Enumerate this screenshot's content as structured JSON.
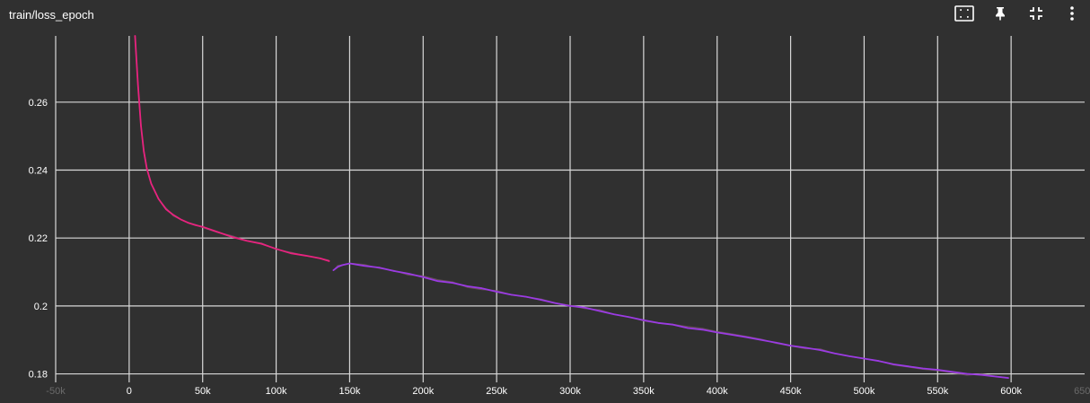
{
  "panel": {
    "title": "train/loss_epoch"
  },
  "toolbar": {
    "icons": [
      "fit-to-data-icon",
      "pin-icon",
      "collapse-icon",
      "more-options-icon"
    ]
  },
  "colors": {
    "background": "#303030",
    "grid": "#d8d8d8",
    "run1": "#e8237f",
    "run2": "#9b3be3",
    "raw_trace": "#7a5a68"
  },
  "chart_data": {
    "type": "line",
    "title": "train/loss_epoch",
    "xlabel": "",
    "ylabel": "",
    "xlim": [
      -50000,
      650000
    ],
    "ylim": [
      0.1775,
      0.2795
    ],
    "x_ticks": [
      -50000,
      0,
      50000,
      100000,
      150000,
      200000,
      250000,
      300000,
      350000,
      400000,
      450000,
      500000,
      550000,
      600000,
      650000
    ],
    "x_tick_labels": [
      "-50k",
      "0",
      "50k",
      "100k",
      "150k",
      "200k",
      "250k",
      "300k",
      "350k",
      "400k",
      "450k",
      "500k",
      "550k",
      "600k",
      "650k"
    ],
    "y_ticks": [
      0.18,
      0.2,
      0.22,
      0.24,
      0.26
    ],
    "y_tick_labels": [
      "0.18",
      "0.2",
      "0.22",
      "0.24",
      "0.26"
    ],
    "grid": true,
    "legend": "none",
    "series": [
      {
        "color": "#e8237f",
        "x": [
          4000,
          6000,
          8000,
          10000,
          12000,
          15000,
          20000,
          25000,
          30000,
          35000,
          40000,
          45000,
          50000,
          60000,
          70000,
          80000,
          90000,
          100000,
          110000,
          120000,
          130000,
          136000
        ],
        "y": [
          0.2795,
          0.265,
          0.253,
          0.2455,
          0.2405,
          0.236,
          0.2315,
          0.2285,
          0.2268,
          0.2255,
          0.2245,
          0.2238,
          0.2233,
          0.2218,
          0.2203,
          0.2192,
          0.2183,
          0.2168,
          0.2155,
          0.2148,
          0.214,
          0.2132
        ]
      },
      {
        "color": "#9b3be3",
        "x": [
          139000,
          142000,
          145000,
          150000,
          160000,
          170000,
          180000,
          190000,
          200000,
          210000,
          220000,
          230000,
          240000,
          250000,
          260000,
          270000,
          280000,
          290000,
          300000,
          310000,
          320000,
          330000,
          340000,
          350000,
          360000,
          370000,
          380000,
          390000,
          400000,
          410000,
          420000,
          430000,
          440000,
          450000,
          460000,
          470000,
          480000,
          490000,
          500000,
          510000,
          520000,
          530000,
          540000,
          550000,
          560000,
          570000,
          580000,
          590000,
          598000
        ],
        "y": [
          0.2105,
          0.2115,
          0.212,
          0.2125,
          0.2118,
          0.2113,
          0.2103,
          0.2095,
          0.2085,
          0.2073,
          0.2068,
          0.2058,
          0.2052,
          0.2042,
          0.2033,
          0.2027,
          0.2018,
          0.2008,
          0.2,
          0.1995,
          0.1985,
          0.1975,
          0.1967,
          0.1958,
          0.195,
          0.1945,
          0.1935,
          0.193,
          0.1922,
          0.1915,
          0.1908,
          0.19,
          0.1892,
          0.1883,
          0.1877,
          0.187,
          0.186,
          0.1852,
          0.1845,
          0.1838,
          0.1828,
          0.1822,
          0.1816,
          0.1812,
          0.1806,
          0.18,
          0.1797,
          0.1792,
          0.1788
        ]
      }
    ]
  }
}
